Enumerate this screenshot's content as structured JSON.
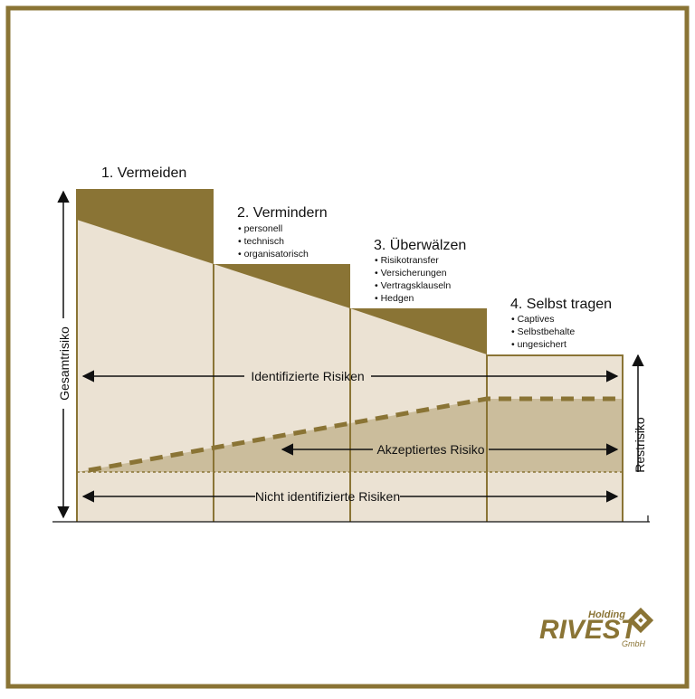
{
  "colors": {
    "gold": "#8a7435",
    "frame": "#8a7435",
    "light_fill": "#ebe2d3",
    "mid_fill": "#cbbd9c",
    "text": "#111111",
    "white": "#ffffff"
  },
  "axes": {
    "y_label": "Gesamtrisiko",
    "right_label": "Restrisiko"
  },
  "stages": [
    {
      "title": "1. Vermeiden",
      "items": []
    },
    {
      "title": "2. Vermindern",
      "items": [
        "personell",
        "technisch",
        "organisatorisch"
      ]
    },
    {
      "title": "3. Überwälzen",
      "items": [
        "Risikotransfer",
        "Versicherungen",
        "Vertragsklauseln",
        "Hedgen"
      ]
    },
    {
      "title": "4. Selbst tragen",
      "items": [
        "Captives",
        "Selbstbehalte",
        "ungesichert"
      ]
    }
  ],
  "arrows": {
    "identified": "Identifizierte Risiken",
    "accepted": "Akzeptiertes Risiko",
    "not_identified": "Nicht identifizierte Risiken"
  },
  "logo": {
    "holding": "Holding",
    "name": "RIVEST",
    "suffix": "GmbH"
  }
}
